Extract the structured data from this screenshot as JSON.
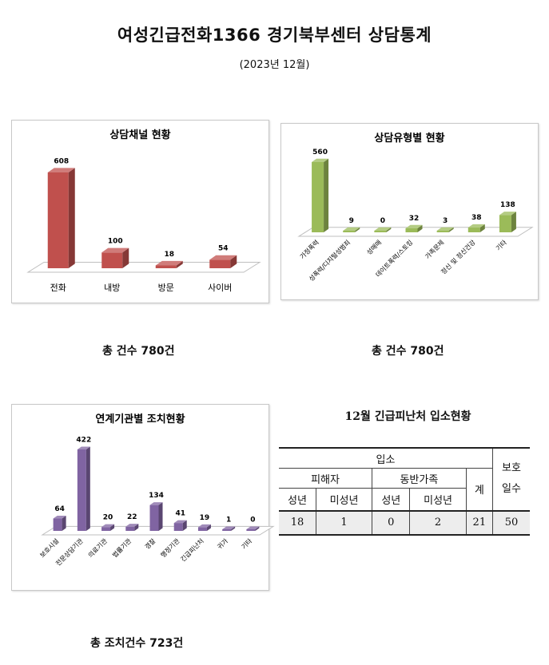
{
  "page": {
    "title": "여성긴급전화1366 경기북부센터 상담통계",
    "subtitle": "(2023년  12월)"
  },
  "chart_data": [
    {
      "type": "bar",
      "title": "상담채널 현황",
      "categories": [
        "전화",
        "내방",
        "방문",
        "사이버"
      ],
      "values": [
        608,
        100,
        18,
        54
      ],
      "color": "#c0504d",
      "grid": false,
      "legend": "none",
      "total_label": "총 건수 780건"
    },
    {
      "type": "bar",
      "title": "상담유형별 현황",
      "categories": [
        "가정폭력",
        "성폭력/디지털성범죄",
        "성매매",
        "데이트폭력/스토킹",
        "가족문제",
        "정신 및 정신건강",
        "기타"
      ],
      "values": [
        560,
        9,
        0,
        32,
        3,
        38,
        138
      ],
      "color": "#9bbb59",
      "grid": false,
      "legend": "none",
      "total_label": "총 건수 780건"
    },
    {
      "type": "bar",
      "title": "연계기관별 조치현황",
      "categories": [
        "보호시설",
        "전문상담기관",
        "의료기관",
        "법률기관",
        "경찰",
        "행정기관",
        "긴급피난처",
        "귀가",
        "기타"
      ],
      "values": [
        64,
        422,
        20,
        22,
        134,
        41,
        19,
        1,
        0
      ],
      "color": "#8064a2",
      "grid": false,
      "legend": "none",
      "total_label": "총 조치건수 723건"
    }
  ],
  "table": {
    "title": "12월  긴급피난처  입소현황",
    "header_admission": "입소",
    "header_victim": "피해자",
    "header_family": "동반가족",
    "header_total": "계",
    "header_protect": "보호\n일수",
    "sub_adult": "성년",
    "sub_minor": "미성년",
    "sub_adult2": "성년",
    "sub_minor2": "미성년",
    "row": [
      "18",
      "1",
      "0",
      "2",
      "21",
      "50"
    ]
  }
}
